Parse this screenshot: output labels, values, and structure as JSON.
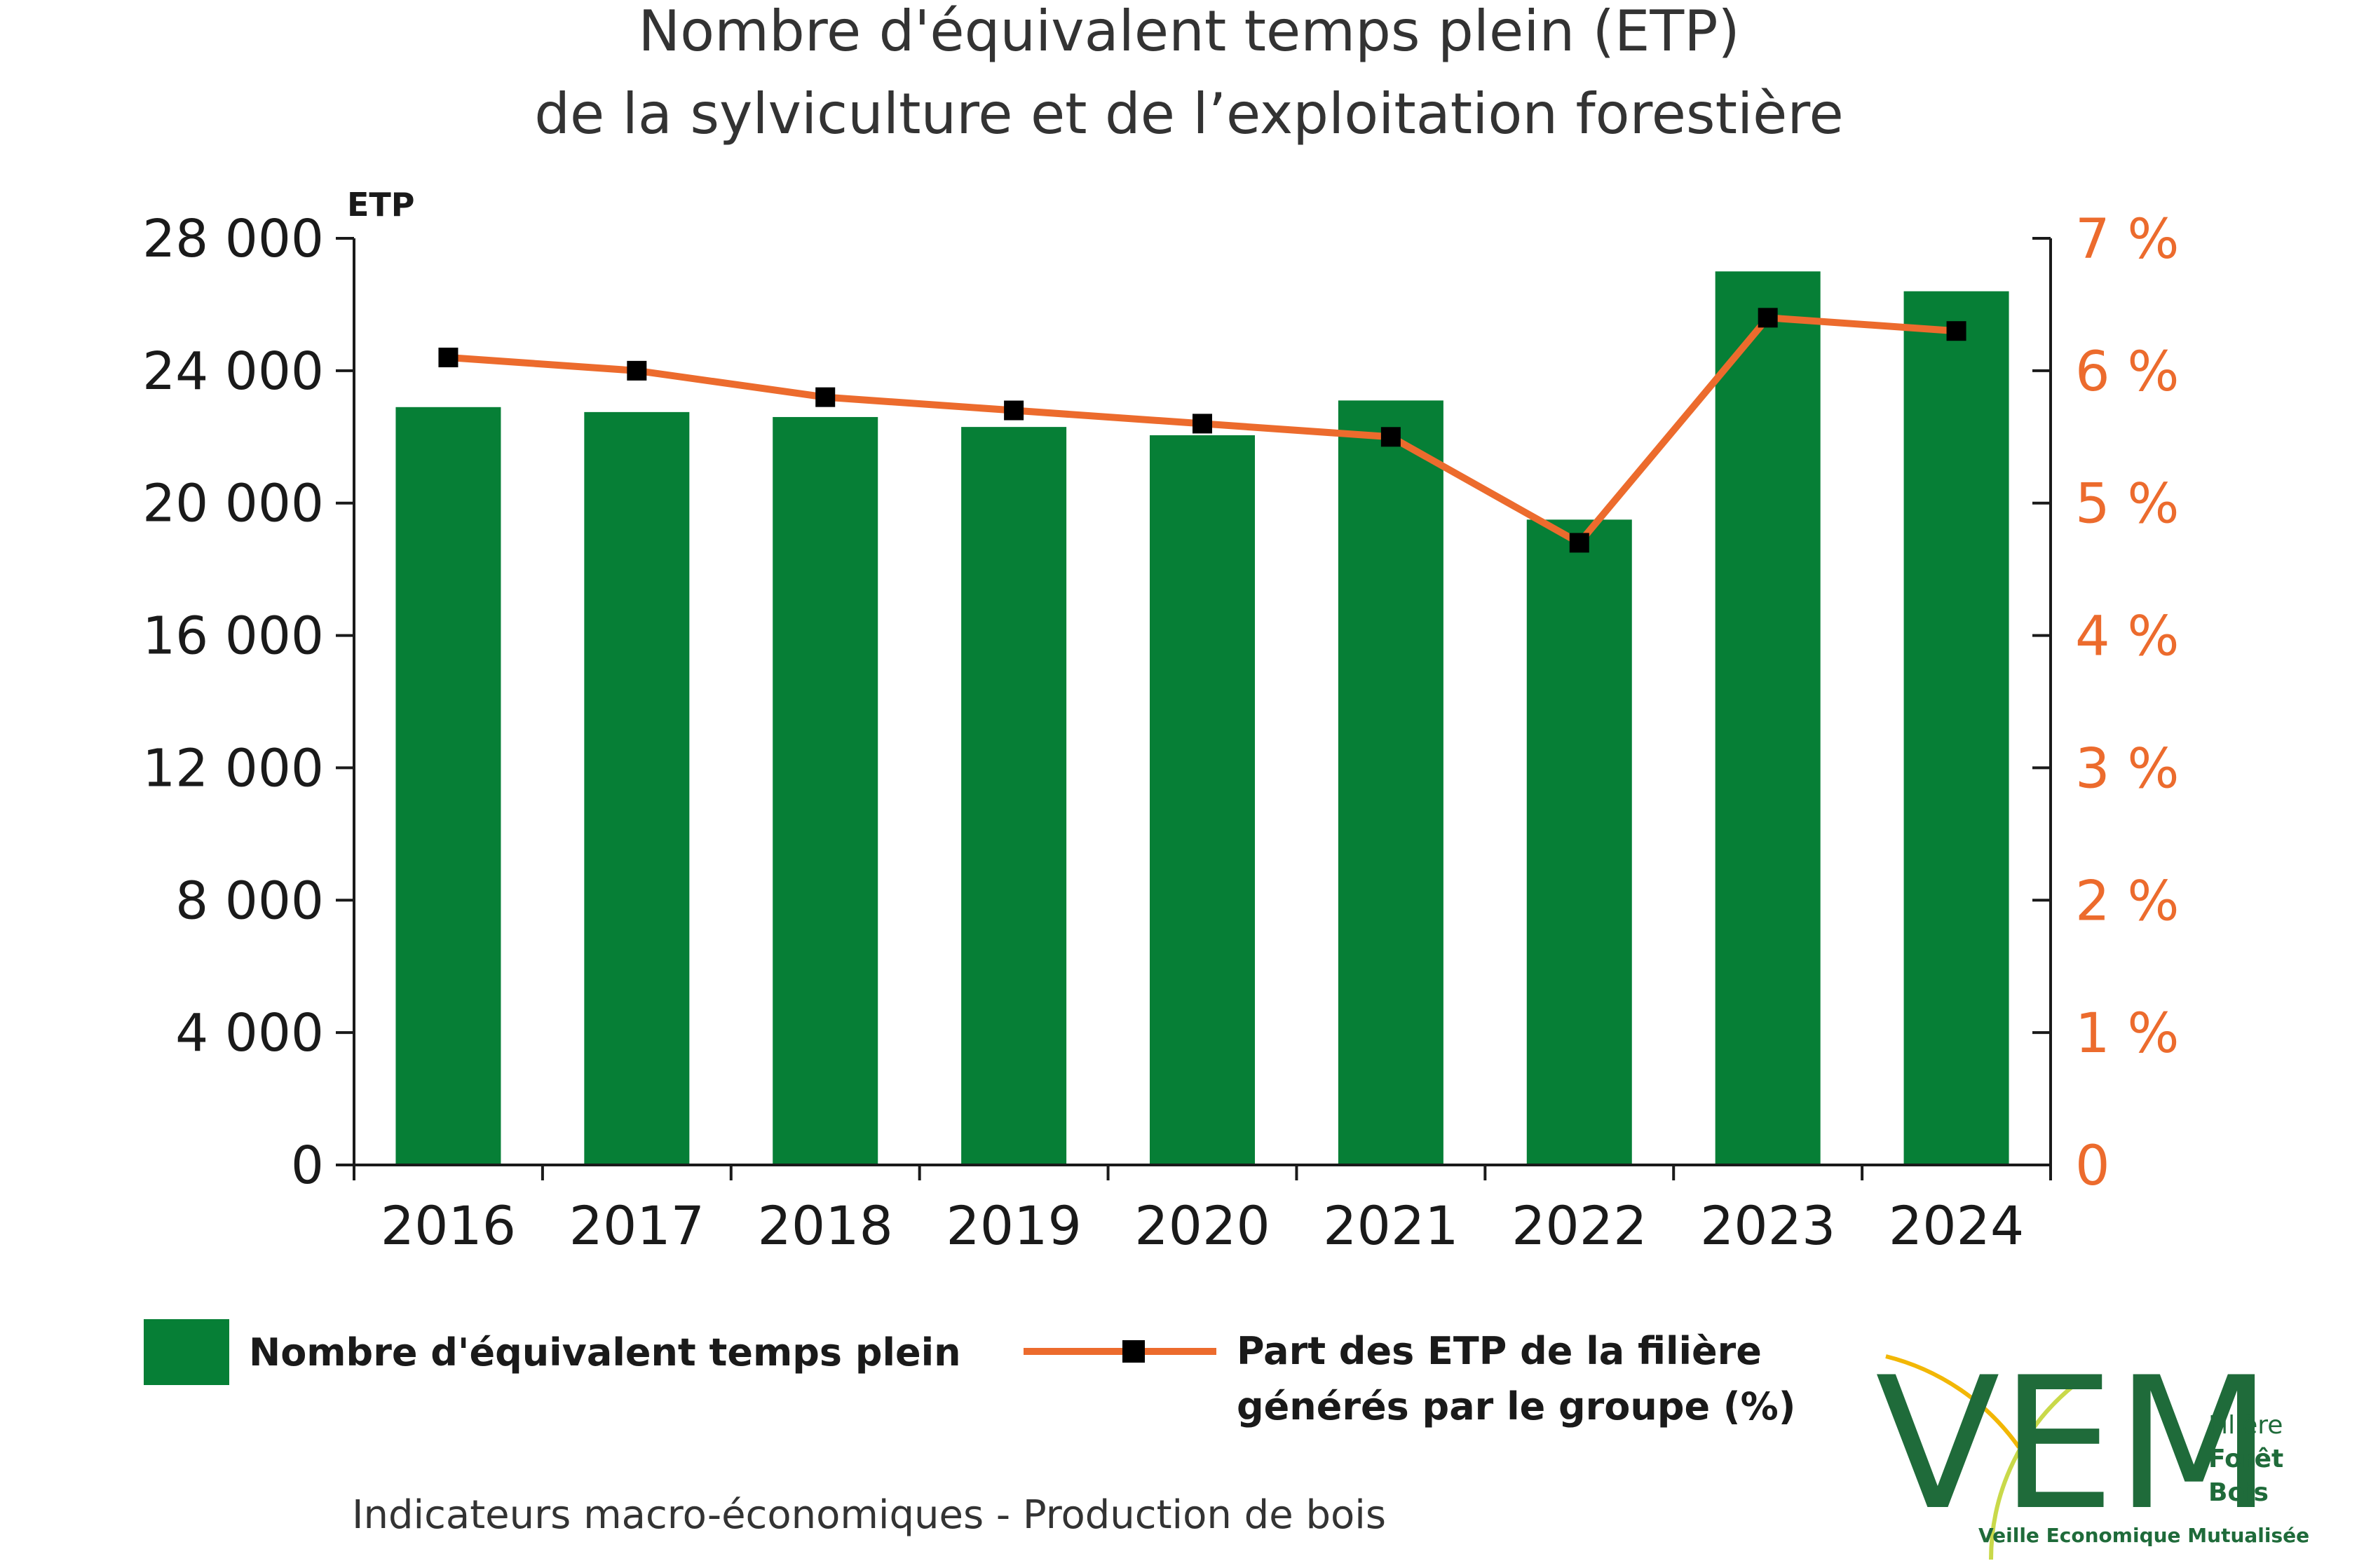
{
  "title_line1": "Nombre d'équivalent temps plein (ETP)",
  "title_line2": "de la sylviculture et de l’exploitation forestière",
  "colors": {
    "bar": "#067f36",
    "line": "#ec6b2d",
    "marker": "#000000",
    "axis": "#1a1a1a",
    "logo": "#1f6b3a"
  },
  "chart_data": {
    "type": "bar",
    "categories": [
      "2016",
      "2017",
      "2018",
      "2019",
      "2020",
      "2021",
      "2022",
      "2023",
      "2024"
    ],
    "series": [
      {
        "name": "Nombre d'équivalent temps plein",
        "type": "bar",
        "axis": "left",
        "values": [
          22900,
          22750,
          22600,
          22300,
          22050,
          23100,
          19500,
          27000,
          26400
        ]
      },
      {
        "name": "Part des ETP de la filière générés par le groupe (%)",
        "type": "line",
        "axis": "right",
        "values": [
          6.1,
          6.0,
          5.8,
          5.7,
          5.6,
          5.5,
          4.7,
          6.4,
          6.3
        ]
      }
    ],
    "y_left": {
      "unit_label": "ETP",
      "range": [
        0,
        28000
      ],
      "ticks": [
        "0",
        "4 000",
        "8 000",
        "12 000",
        "16 000",
        "20 000",
        "24 000",
        "28 000"
      ]
    },
    "y_right": {
      "range": [
        0,
        7
      ],
      "ticks": [
        "0",
        "1 %",
        "2 %",
        "3 %",
        "4 %",
        "5 %",
        "6 %",
        "7 %"
      ]
    },
    "grid": false,
    "legend_position": "bottom",
    "legend": {
      "bar_label": "Nombre d'équivalent temps plein",
      "line_label_1": "Part des ETP de la filière",
      "line_label_2": "générés par le groupe (%)"
    }
  },
  "footer": "Indicateurs macro-économiques - Production de bois",
  "logo": {
    "letters": "VEM",
    "line1": "Filière",
    "line2": "Forêt",
    "line3": "Bois",
    "tagline": "Veille Economique Mutualisée"
  }
}
